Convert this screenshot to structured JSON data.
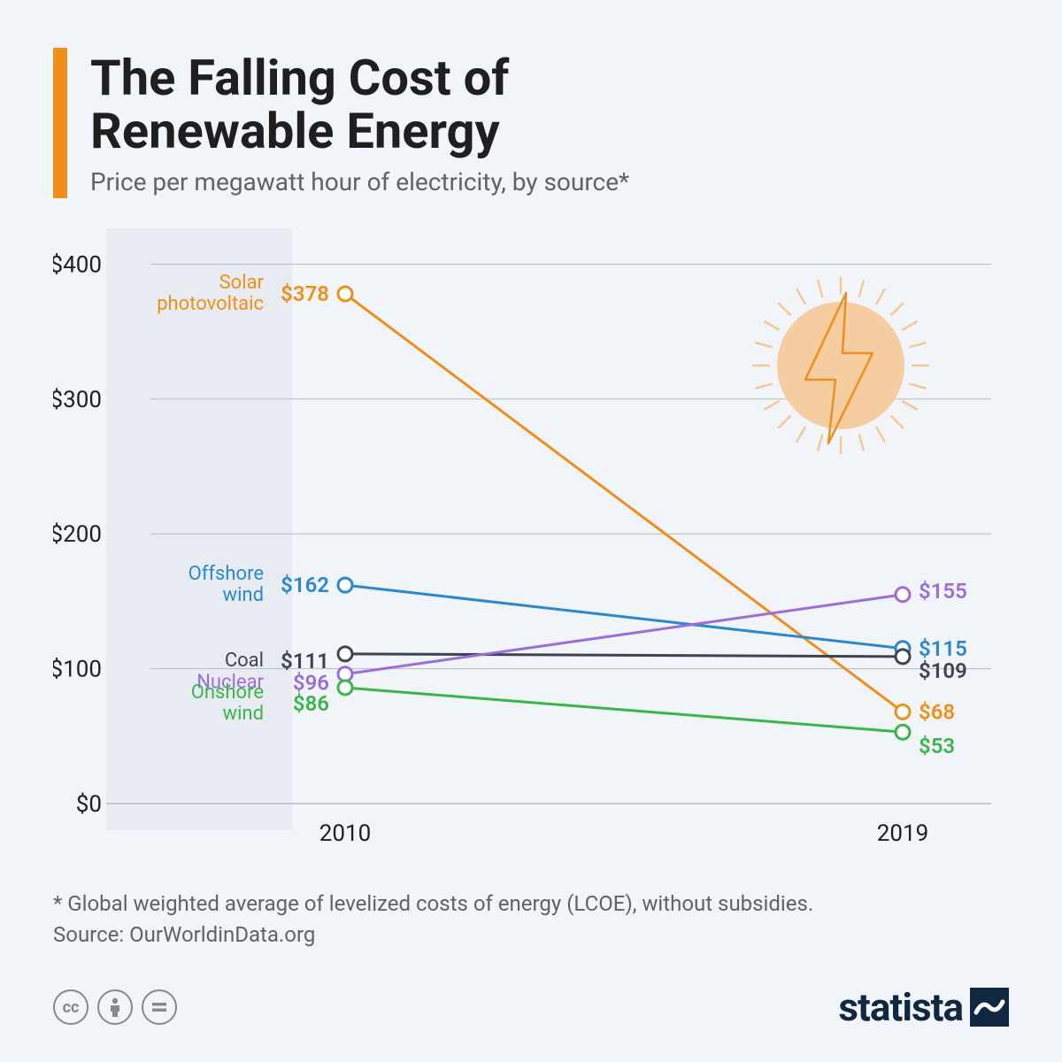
{
  "header": {
    "title_line1": "The Falling Cost of",
    "title_line2": "Renewable Energy",
    "subtitle": "Price per megawatt hour of electricity, by source*",
    "accent_color": "#ef8f1b"
  },
  "chart": {
    "type": "line",
    "background_color": "#f1f4f8",
    "plot_band_color": "#e8ecf2",
    "grid_color": "#b6bcc3",
    "baseline_color": "#b6bcc3",
    "yaxis": {
      "min": 0,
      "max": 420,
      "ticks": [
        0,
        100,
        200,
        300,
        400
      ],
      "tick_labels": [
        "$0",
        "$100",
        "$200",
        "$300",
        "$400"
      ],
      "label_color": "#1f1f1f",
      "label_fontsize": 26
    },
    "xaxis": {
      "categories": [
        "2010",
        "2019"
      ],
      "label_color": "#1f1f1f",
      "label_fontsize": 26
    },
    "line_width": 3,
    "marker_radius": 8,
    "marker_stroke_width": 3,
    "marker_fill": "#ffffff",
    "series": [
      {
        "name": "Solar photovoltaic",
        "name_lines": [
          "Solar",
          "photovoltaic"
        ],
        "color": "#ef8f1b",
        "values": [
          378,
          68
        ],
        "value_labels": [
          "$378",
          "$68"
        ]
      },
      {
        "name": "Offshore wind",
        "name_lines": [
          "Offshore",
          "wind"
        ],
        "color": "#2b87d1",
        "values": [
          162,
          115
        ],
        "value_labels": [
          "$162",
          "$115"
        ]
      },
      {
        "name": "Coal",
        "name_lines": [
          "Coal"
        ],
        "color": "#3c4650",
        "values": [
          111,
          109
        ],
        "value_labels": [
          "$111",
          "$109"
        ]
      },
      {
        "name": "Nuclear",
        "name_lines": [
          "Nuclear"
        ],
        "color": "#9c6dd9",
        "values": [
          96,
          155
        ],
        "value_labels": [
          "$96",
          "$155"
        ]
      },
      {
        "name": "Onshore wind",
        "name_lines": [
          "Onshore",
          "wind"
        ],
        "color": "#3bb54a",
        "values": [
          86,
          53
        ],
        "value_labels": [
          "$86",
          "$53"
        ]
      }
    ],
    "icon": {
      "sun_color": "#f5c996",
      "bolt_color": "#ef8f1b"
    }
  },
  "footnote": {
    "line1": "* Global weighted average of levelized costs of energy (LCOE), without subsidies.",
    "line2": "Source: OurWorldinData.org"
  },
  "footer": {
    "brand": "statista",
    "brand_color": "#0f2741"
  }
}
